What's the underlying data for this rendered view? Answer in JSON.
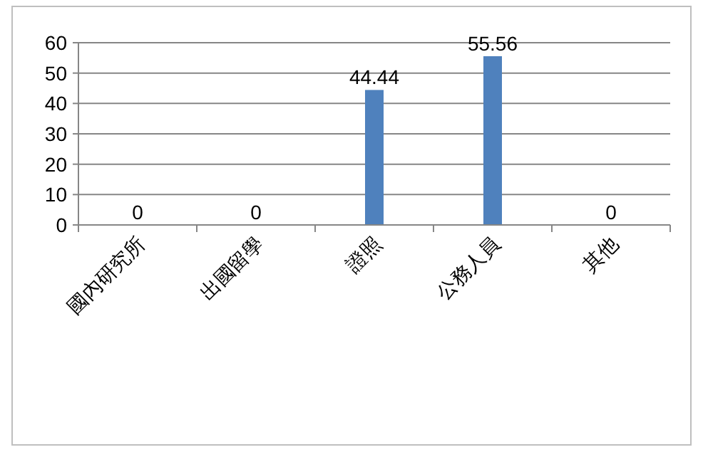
{
  "chart_data": {
    "type": "bar",
    "categories": [
      "國內研究所",
      "出國留學",
      "證照",
      "公務人員",
      "其他"
    ],
    "values": [
      0,
      0,
      44.44,
      55.56,
      0
    ],
    "color": "#4f81bd",
    "ylim": [
      0,
      60
    ],
    "yticks": [
      0,
      10,
      20,
      30,
      40,
      50,
      60
    ],
    "grid": "y",
    "data_labels": true
  }
}
